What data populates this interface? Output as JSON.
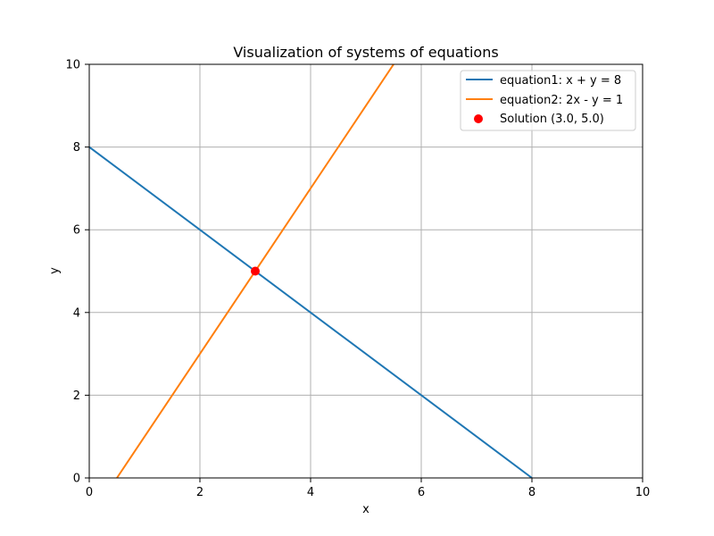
{
  "chart_data": {
    "type": "line",
    "title": "Visualization of systems of equations",
    "xlabel": "x",
    "ylabel": "y",
    "xlim": [
      0,
      10
    ],
    "ylim": [
      0,
      10
    ],
    "xticks": [
      0,
      2,
      4,
      6,
      8,
      10
    ],
    "yticks": [
      0,
      2,
      4,
      6,
      8,
      10
    ],
    "grid": true,
    "legend_position": "top-right",
    "series": [
      {
        "name": "equation1: x + y = 8",
        "color": "#1f77b4",
        "type": "line",
        "points": [
          [
            0,
            8
          ],
          [
            8,
            0
          ]
        ]
      },
      {
        "name": "equation2: 2x - y = 1",
        "color": "#ff7f0e",
        "type": "line",
        "points": [
          [
            0.5,
            0
          ],
          [
            5.5,
            10
          ]
        ]
      },
      {
        "name": "Solution (3.0, 5.0)",
        "color": "#ff0000",
        "type": "scatter",
        "points": [
          [
            3.0,
            5.0
          ]
        ]
      }
    ]
  }
}
